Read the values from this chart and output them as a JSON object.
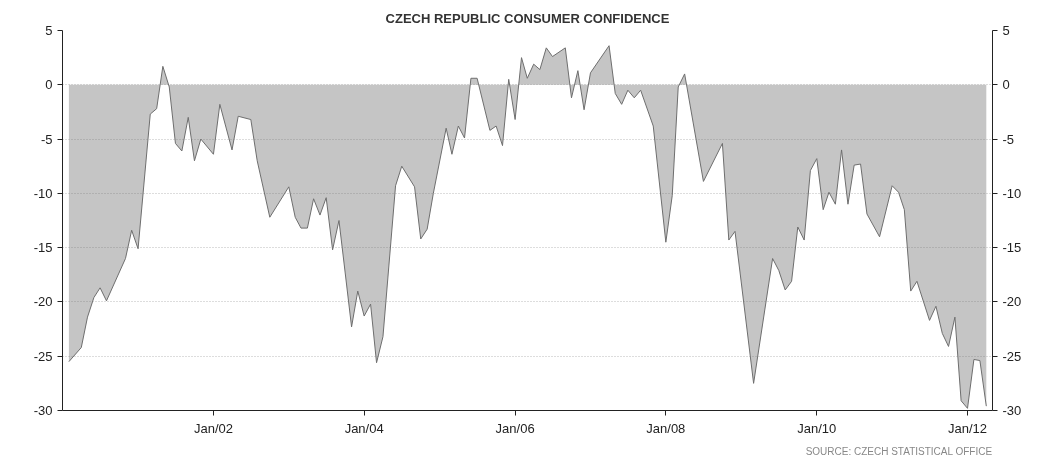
{
  "chart_data": {
    "type": "area",
    "title": "CZECH REPUBLIC CONSUMER CONFIDENCE",
    "annotations": [
      "SOURCE: CZECH STATISTICAL OFFICE"
    ],
    "x": [
      "2000-02",
      "2000-04",
      "2000-05",
      "2000-06",
      "2000-07",
      "2000-08",
      "2000-11",
      "2000-12",
      "2001-01",
      "2001-03",
      "2001-04",
      "2001-05",
      "2001-06",
      "2001-07",
      "2001-08",
      "2001-09",
      "2001-10",
      "2001-11",
      "2002-01",
      "2002-02",
      "2002-04",
      "2002-05",
      "2002-07",
      "2002-08",
      "2002-10",
      "2003-01",
      "2003-02",
      "2003-03",
      "2003-04",
      "2003-05",
      "2003-06",
      "2003-07",
      "2003-08",
      "2003-09",
      "2003-11",
      "2003-12",
      "2004-01",
      "2004-02",
      "2004-03",
      "2004-04",
      "2004-06",
      "2004-07",
      "2004-09",
      "2004-10",
      "2004-11",
      "2004-12",
      "2005-02",
      "2005-03",
      "2005-04",
      "2005-05",
      "2005-06",
      "2005-07",
      "2005-09",
      "2005-10",
      "2005-11",
      "2005-12",
      "2006-01",
      "2006-02",
      "2006-03",
      "2006-04",
      "2006-05",
      "2006-06",
      "2006-07",
      "2006-09",
      "2006-10",
      "2006-11",
      "2006-12",
      "2007-01",
      "2007-04",
      "2007-05",
      "2007-06",
      "2007-07",
      "2007-08",
      "2007-09",
      "2007-11",
      "2008-01",
      "2008-02",
      "2008-03",
      "2008-04",
      "2008-07",
      "2008-10",
      "2008-11",
      "2008-12",
      "2009-03",
      "2009-06",
      "2009-07",
      "2009-08",
      "2009-09",
      "2009-10",
      "2009-11",
      "2009-12",
      "2010-01",
      "2010-02",
      "2010-03",
      "2010-04",
      "2010-05",
      "2010-06",
      "2010-07",
      "2010-08",
      "2010-09",
      "2010-11",
      "2011-01",
      "2011-02",
      "2011-03",
      "2011-04",
      "2011-05",
      "2011-07",
      "2011-08",
      "2011-09",
      "2011-10",
      "2011-11",
      "2011-12",
      "2012-01",
      "2012-02",
      "2012-03",
      "2012-04"
    ],
    "series": [
      {
        "color": "#6e6e6e",
        "values": [
          -25.5,
          -24.2,
          -21.4,
          -19.6,
          -18.7,
          -19.9,
          -16.0,
          -13.4,
          -15.1,
          -2.7,
          -2.2,
          1.7,
          -0.2,
          -5.4,
          -6.1,
          -3.0,
          -7.0,
          -5.0,
          -6.4,
          -1.8,
          -6.0,
          -2.9,
          -3.2,
          -7.0,
          -12.2,
          -9.4,
          -12.2,
          -13.2,
          -13.2,
          -10.5,
          -12.0,
          -10.4,
          -15.2,
          -12.5,
          -22.3,
          -19.0,
          -21.3,
          -20.2,
          -25.6,
          -23.2,
          -9.3,
          -7.5,
          -9.4,
          -14.2,
          -13.3,
          -10.0,
          -4.0,
          -6.4,
          -3.8,
          -4.9,
          0.6,
          0.6,
          -4.2,
          -3.8,
          -5.6,
          0.5,
          -3.2,
          2.5,
          0.6,
          1.9,
          1.4,
          3.4,
          2.6,
          3.4,
          -1.2,
          1.3,
          -2.3,
          1.1,
          3.6,
          -0.8,
          -1.8,
          -0.5,
          -1.2,
          -0.5,
          -3.8,
          -14.5,
          -10.2,
          -0.2,
          1.0,
          -8.9,
          -5.4,
          -14.3,
          -13.5,
          -27.5,
          -16.0,
          -17.1,
          -18.9,
          -18.1,
          -13.1,
          -14.3,
          -7.9,
          -6.8,
          -11.5,
          -9.9,
          -11.0,
          -6.0,
          -11.0,
          -7.4,
          -7.3,
          -11.9,
          -14.0,
          -9.3,
          -9.9,
          -11.5,
          -19.0,
          -18.1,
          -21.7,
          -20.4,
          -22.9,
          -24.1,
          -21.4,
          -29.1,
          -29.8,
          -25.3,
          -25.4,
          -29.6
        ]
      }
    ],
    "xlim": [
      "2000-01",
      "2012-05"
    ],
    "xticks": [
      {
        "value": "2002-01",
        "label": "Jan/02"
      },
      {
        "value": "2004-01",
        "label": "Jan/04"
      },
      {
        "value": "2006-01",
        "label": "Jan/06"
      },
      {
        "value": "2008-01",
        "label": "Jan/08"
      },
      {
        "value": "2010-01",
        "label": "Jan/10"
      },
      {
        "value": "2012-01",
        "label": "Jan/12"
      }
    ],
    "ylim": [
      -30,
      5
    ],
    "yticks": [
      -30,
      -25,
      -20,
      -15,
      -10,
      -5,
      0,
      5
    ],
    "y2lim": [
      -30,
      5
    ],
    "y2ticks": [
      -30,
      -25,
      -20,
      -15,
      -10,
      -5,
      0,
      5
    ],
    "grid": true
  }
}
